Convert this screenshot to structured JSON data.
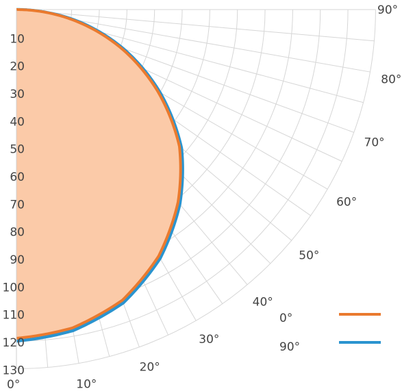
{
  "chart_data": {
    "type": "polar",
    "title": "",
    "radial_ticks": [
      "10",
      "20",
      "30",
      "40",
      "50",
      "60",
      "70",
      "80",
      "90",
      "100",
      "110",
      "120",
      "130"
    ],
    "radial_max": 130,
    "angle_ticks": [
      "0°",
      "10°",
      "20°",
      "30°",
      "40°",
      "50°",
      "60°",
      "70°",
      "80°",
      "90°"
    ],
    "grid": true,
    "legend": {
      "position": "bottom-right"
    },
    "series": [
      {
        "name": "0°",
        "color": "#ea7a2e",
        "fill": "#fbcaa8",
        "angles": [
          0,
          10,
          20,
          30,
          40,
          50,
          60,
          70,
          80,
          85,
          90
        ],
        "values": [
          119,
          117,
          112,
          103,
          91,
          77,
          59,
          40,
          20,
          10,
          0
        ]
      },
      {
        "name": "90°",
        "color": "#2b94cf",
        "angles": [
          0,
          10,
          20,
          30,
          40,
          50,
          60,
          70,
          80,
          85,
          90
        ],
        "values": [
          120,
          118,
          113,
          104,
          92,
          78,
          60,
          41,
          21,
          10,
          0
        ]
      }
    ]
  }
}
